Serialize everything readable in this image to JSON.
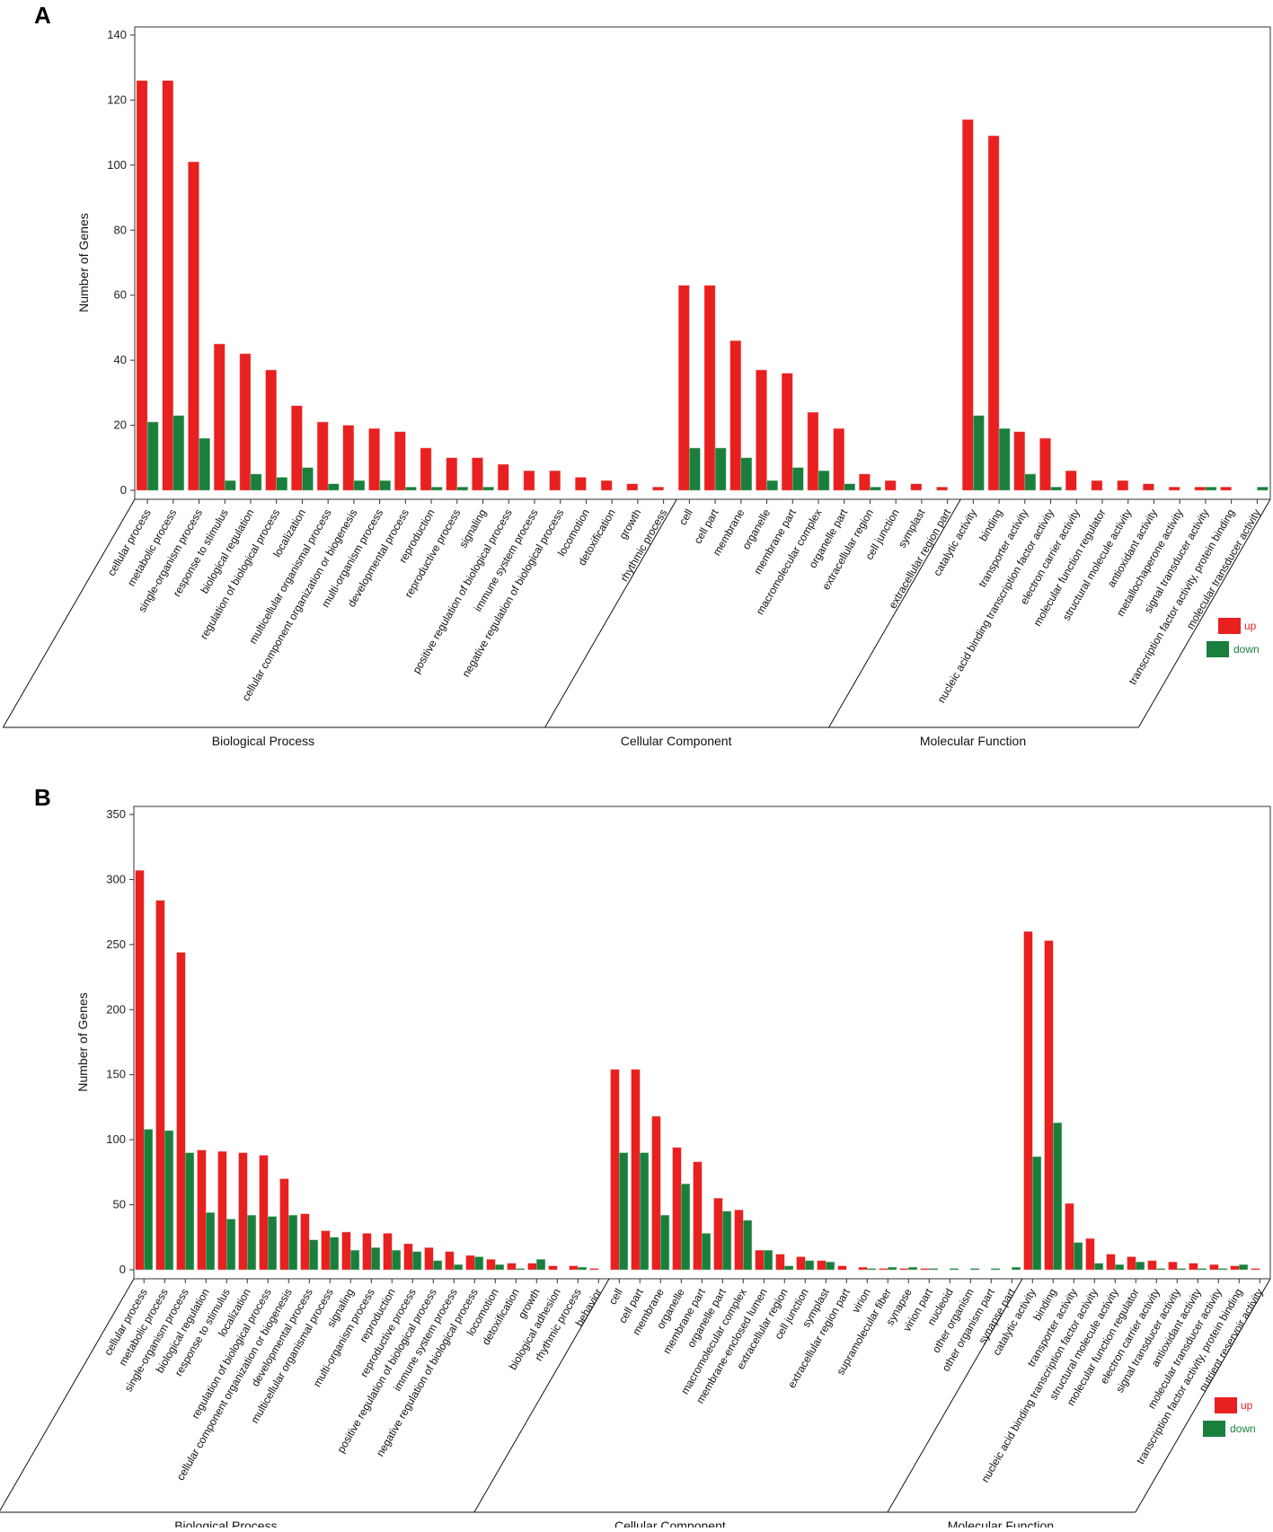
{
  "colors": {
    "up": "#e8201f",
    "down": "#1a7f3c"
  },
  "chart_data": [
    {
      "panel": "A",
      "type": "bar",
      "ylabel": "Number of Genes",
      "ylim": [
        0,
        140
      ],
      "yticks": [
        0,
        20,
        40,
        60,
        80,
        100,
        120,
        140
      ],
      "legend": {
        "position": "right",
        "entries": [
          "up",
          "down"
        ]
      },
      "groups": [
        {
          "name": "Biological Process",
          "categories": [
            {
              "label": "cellular process",
              "up": 126,
              "down": 21
            },
            {
              "label": "metabolic process",
              "up": 126,
              "down": 23
            },
            {
              "label": "single-organism process",
              "up": 101,
              "down": 16
            },
            {
              "label": "response to stimulus",
              "up": 45,
              "down": 3
            },
            {
              "label": "biological regulation",
              "up": 42,
              "down": 5
            },
            {
              "label": "regulation of biological process",
              "up": 37,
              "down": 4
            },
            {
              "label": "localization",
              "up": 26,
              "down": 7
            },
            {
              "label": "multicellular organismal process",
              "up": 21,
              "down": 2
            },
            {
              "label": "cellular component organization or biogenesis",
              "up": 20,
              "down": 3
            },
            {
              "label": "multi-organism process",
              "up": 19,
              "down": 3
            },
            {
              "label": "developmental process",
              "up": 18,
              "down": 1
            },
            {
              "label": "reproduction",
              "up": 13,
              "down": 1
            },
            {
              "label": "reproductive process",
              "up": 10,
              "down": 1
            },
            {
              "label": "signaling",
              "up": 10,
              "down": 1
            },
            {
              "label": "positive regulation of biological process",
              "up": 8,
              "down": 0
            },
            {
              "label": "immune system process",
              "up": 6,
              "down": 0
            },
            {
              "label": "negative regulation of biological process",
              "up": 6,
              "down": 0
            },
            {
              "label": "locomotion",
              "up": 4,
              "down": 0
            },
            {
              "label": "detoxification",
              "up": 3,
              "down": 0
            },
            {
              "label": "growth",
              "up": 2,
              "down": 0
            },
            {
              "label": "rhythmic process",
              "up": 1,
              "down": 0
            }
          ]
        },
        {
          "name": "Cellular Component",
          "categories": [
            {
              "label": "cell",
              "up": 63,
              "down": 13
            },
            {
              "label": "cell part",
              "up": 63,
              "down": 13
            },
            {
              "label": "membrane",
              "up": 46,
              "down": 10
            },
            {
              "label": "organelle",
              "up": 37,
              "down": 3
            },
            {
              "label": "membrane part",
              "up": 36,
              "down": 7
            },
            {
              "label": "macromolecular complex",
              "up": 24,
              "down": 6
            },
            {
              "label": "organelle part",
              "up": 19,
              "down": 2
            },
            {
              "label": "extracellular region",
              "up": 5,
              "down": 1
            },
            {
              "label": "cell junction",
              "up": 3,
              "down": 0
            },
            {
              "label": "symplast",
              "up": 2,
              "down": 0
            },
            {
              "label": "extracellular region part",
              "up": 1,
              "down": 0
            }
          ]
        },
        {
          "name": "Molecular Function",
          "categories": [
            {
              "label": "catalytic activity",
              "up": 114,
              "down": 23
            },
            {
              "label": "binding",
              "up": 109,
              "down": 19
            },
            {
              "label": "transporter activity",
              "up": 18,
              "down": 5
            },
            {
              "label": "nucleic acid binding transcription factor activity",
              "up": 16,
              "down": 1
            },
            {
              "label": "electron carrier activity",
              "up": 6,
              "down": 0
            },
            {
              "label": "molecular function regulator",
              "up": 3,
              "down": 0
            },
            {
              "label": "structural molecule activity",
              "up": 3,
              "down": 0
            },
            {
              "label": "antioxidant activity",
              "up": 2,
              "down": 0
            },
            {
              "label": "metallochaperone activity",
              "up": 1,
              "down": 0
            },
            {
              "label": "signal transducer activity",
              "up": 1,
              "down": 1
            },
            {
              "label": "transcription factor activity, protein binding",
              "up": 1,
              "down": 0
            },
            {
              "label": "molecular transducer activity",
              "up": 0,
              "down": 1
            }
          ]
        }
      ]
    },
    {
      "panel": "B",
      "type": "bar",
      "ylabel": "Number of Genes",
      "ylim": [
        0,
        350
      ],
      "yticks": [
        0,
        50,
        100,
        150,
        200,
        250,
        300,
        350
      ],
      "legend": {
        "position": "right",
        "entries": [
          "up",
          "down"
        ]
      },
      "groups": [
        {
          "name": "Biological Process",
          "categories": [
            {
              "label": "cellular process",
              "up": 307,
              "down": 108
            },
            {
              "label": "metabolic process",
              "up": 284,
              "down": 107
            },
            {
              "label": "single-organism process",
              "up": 244,
              "down": 90
            },
            {
              "label": "biological regulation",
              "up": 92,
              "down": 44
            },
            {
              "label": "response to stimulus",
              "up": 91,
              "down": 39
            },
            {
              "label": "localization",
              "up": 90,
              "down": 42
            },
            {
              "label": "regulation of biological process",
              "up": 88,
              "down": 41
            },
            {
              "label": "cellular component organization or biogenesis",
              "up": 70,
              "down": 42
            },
            {
              "label": "developmental process",
              "up": 43,
              "down": 23
            },
            {
              "label": "multicellular organismal process",
              "up": 30,
              "down": 25
            },
            {
              "label": "signaling",
              "up": 29,
              "down": 15
            },
            {
              "label": "multi-organism process",
              "up": 28,
              "down": 17
            },
            {
              "label": "reproduction",
              "up": 28,
              "down": 15
            },
            {
              "label": "reproductive process",
              "up": 20,
              "down": 14
            },
            {
              "label": "positive regulation of biological process",
              "up": 17,
              "down": 7
            },
            {
              "label": "immune system process",
              "up": 14,
              "down": 4
            },
            {
              "label": "negative regulation of biological process",
              "up": 11,
              "down": 10
            },
            {
              "label": "locomotion",
              "up": 8,
              "down": 4
            },
            {
              "label": "detoxification",
              "up": 5,
              "down": 1
            },
            {
              "label": "growth",
              "up": 5,
              "down": 8
            },
            {
              "label": "biological adhesion",
              "up": 3,
              "down": 0
            },
            {
              "label": "rhythmic process",
              "up": 3,
              "down": 2
            },
            {
              "label": "behavior",
              "up": 1,
              "down": 0
            }
          ]
        },
        {
          "name": "Cellular Component",
          "categories": [
            {
              "label": "cell",
              "up": 154,
              "down": 90
            },
            {
              "label": "cell part",
              "up": 154,
              "down": 90
            },
            {
              "label": "membrane",
              "up": 118,
              "down": 42
            },
            {
              "label": "organelle",
              "up": 94,
              "down": 66
            },
            {
              "label": "membrane part",
              "up": 83,
              "down": 28
            },
            {
              "label": "organelle part",
              "up": 55,
              "down": 45
            },
            {
              "label": "macromolecular complex",
              "up": 46,
              "down": 38
            },
            {
              "label": "membrane-enclosed lumen",
              "up": 15,
              "down": 15
            },
            {
              "label": "extracellular region",
              "up": 12,
              "down": 3
            },
            {
              "label": "cell junction",
              "up": 10,
              "down": 7
            },
            {
              "label": "symplast",
              "up": 7,
              "down": 6
            },
            {
              "label": "extracellular region part",
              "up": 3,
              "down": 0
            },
            {
              "label": "virion",
              "up": 2,
              "down": 1
            },
            {
              "label": "supramolecular fiber",
              "up": 1,
              "down": 2
            },
            {
              "label": "synapse",
              "up": 1,
              "down": 2
            },
            {
              "label": "virion part",
              "up": 1,
              "down": 1
            },
            {
              "label": "nucleoid",
              "up": 0,
              "down": 1
            },
            {
              "label": "other organism",
              "up": 0,
              "down": 1
            },
            {
              "label": "other organism part",
              "up": 0,
              "down": 1
            },
            {
              "label": "synapse part",
              "up": 0,
              "down": 2
            }
          ]
        },
        {
          "name": "Molecular Function",
          "categories": [
            {
              "label": "catalytic activity",
              "up": 260,
              "down": 87
            },
            {
              "label": "binding",
              "up": 253,
              "down": 113
            },
            {
              "label": "transporter activity",
              "up": 51,
              "down": 21
            },
            {
              "label": "nucleic acid binding transcription factor activity",
              "up": 24,
              "down": 5
            },
            {
              "label": "structural molecule activity",
              "up": 12,
              "down": 4
            },
            {
              "label": "molecular function regulator",
              "up": 10,
              "down": 6
            },
            {
              "label": "electron carrier activity",
              "up": 7,
              "down": 1
            },
            {
              "label": "signal transducer activity",
              "up": 6,
              "down": 1
            },
            {
              "label": "antioxidant activity",
              "up": 5,
              "down": 1
            },
            {
              "label": "molecular transducer activity",
              "up": 4,
              "down": 1
            },
            {
              "label": "transcription factor activity, protein binding",
              "up": 3,
              "down": 4
            },
            {
              "label": "nutrient reservoir activity",
              "up": 1,
              "down": 0
            }
          ]
        }
      ]
    }
  ]
}
